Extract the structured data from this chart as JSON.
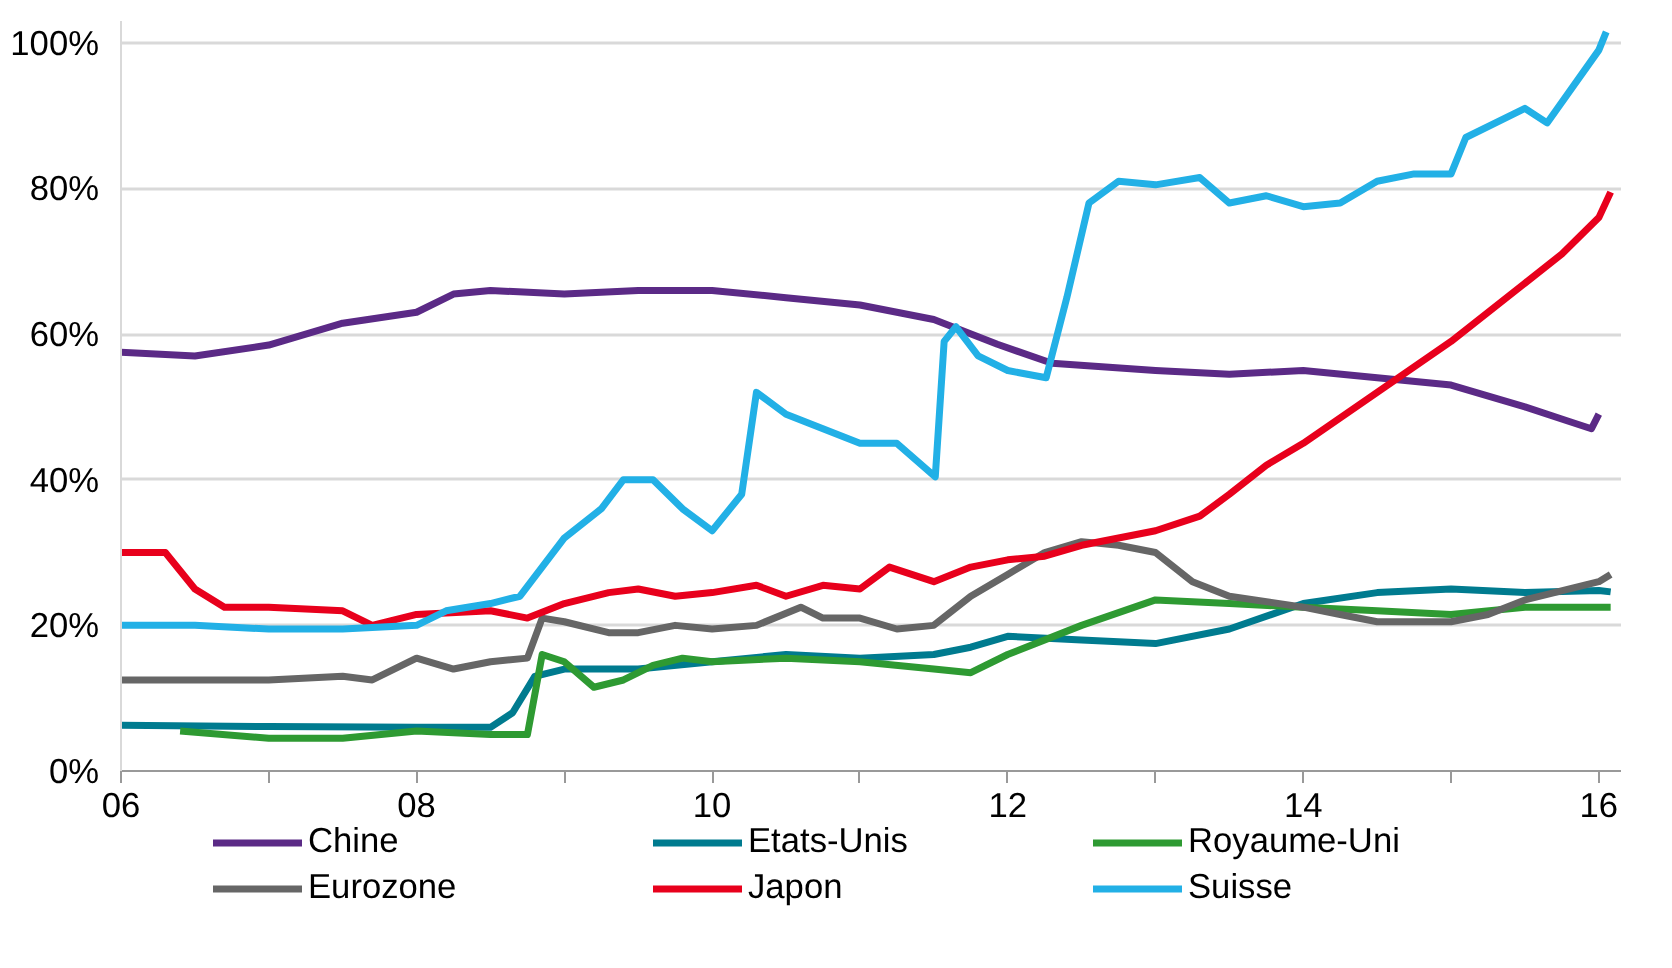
{
  "chart_data": {
    "type": "line",
    "xlim": [
      6,
      16.15
    ],
    "ylim": [
      0,
      103
    ],
    "xticks": [
      {
        "value": 6,
        "label": "06"
      },
      {
        "value": 7,
        "label": null
      },
      {
        "value": 8,
        "label": "08"
      },
      {
        "value": 9,
        "label": null
      },
      {
        "value": 10,
        "label": "10"
      },
      {
        "value": 11,
        "label": null
      },
      {
        "value": 12,
        "label": "12"
      },
      {
        "value": 13,
        "label": null
      },
      {
        "value": 14,
        "label": "14"
      },
      {
        "value": 15,
        "label": null
      },
      {
        "value": 16,
        "label": "16"
      }
    ],
    "yticks": [
      {
        "value": 0,
        "label": "0%"
      },
      {
        "value": 20,
        "label": "20%"
      },
      {
        "value": 40,
        "label": "40%"
      },
      {
        "value": 60,
        "label": "60%"
      },
      {
        "value": 80,
        "label": "80%"
      },
      {
        "value": 100,
        "label": "100%"
      }
    ],
    "grid": "y",
    "legend": "bottom",
    "marker": "none",
    "line_style": "solid",
    "series": [
      {
        "name": "Chine",
        "color": "#5b2a86",
        "x": [
          6,
          6.5,
          7,
          7.5,
          8,
          8.25,
          8.5,
          9,
          9.5,
          10,
          10.5,
          11,
          11.5,
          11.93,
          12.3,
          13,
          13.5,
          14,
          14.5,
          15,
          15.5,
          15.8,
          15.95,
          16.0
        ],
        "values": [
          57.5,
          57,
          58.5,
          61.5,
          63,
          65.5,
          66,
          65.5,
          66,
          66,
          65,
          64,
          62,
          58.6,
          56,
          55,
          54.5,
          55,
          54,
          53,
          50,
          48,
          47,
          49
        ]
      },
      {
        "name": "Etats-Unis",
        "color": "#007b8f",
        "x": [
          6,
          7,
          8,
          8.5,
          8.65,
          8.8,
          9,
          9.5,
          10,
          10.5,
          11,
          11.5,
          11.75,
          12,
          12.5,
          13,
          13.5,
          14,
          14.5,
          15,
          15.5,
          16,
          16.08
        ],
        "values": [
          6.3,
          6.1,
          6,
          6,
          8,
          13,
          14,
          14,
          15,
          16,
          15.5,
          16,
          17,
          18.5,
          18,
          17.5,
          19.5,
          23,
          24.5,
          25,
          24.5,
          24.8,
          24.6
        ]
      },
      {
        "name": "Royaume-Uni",
        "color": "#2e9a32",
        "x": [
          6.4,
          7,
          7.5,
          8,
          8.5,
          8.75,
          8.85,
          9,
          9.2,
          9.4,
          9.6,
          9.8,
          10,
          10.5,
          11,
          11.5,
          11.75,
          12,
          12.5,
          13,
          13.5,
          14,
          14.5,
          15,
          15.5,
          16,
          16.08
        ],
        "values": [
          5.5,
          4.5,
          4.5,
          5.5,
          5,
          5,
          16,
          15,
          11.5,
          12.5,
          14.5,
          15.5,
          15,
          15.5,
          15,
          14,
          13.5,
          16,
          20,
          23.5,
          23,
          22.5,
          22,
          21.5,
          22.5,
          22.5,
          22.5
        ]
      },
      {
        "name": "Eurozone",
        "color": "#666666",
        "x": [
          6,
          7,
          7.5,
          7.7,
          8,
          8.25,
          8.5,
          8.75,
          8.85,
          9,
          9.3,
          9.5,
          9.75,
          10,
          10.3,
          10.6,
          10.75,
          11,
          11.25,
          11.5,
          11.75,
          12,
          12.25,
          12.5,
          12.75,
          13,
          13.25,
          13.5,
          14,
          14.25,
          14.5,
          15,
          15.25,
          15.5,
          16,
          16.08
        ],
        "values": [
          12.5,
          12.5,
          13,
          12.5,
          15.5,
          14,
          15,
          15.5,
          21,
          20.5,
          19,
          19,
          20,
          19.5,
          20,
          22.5,
          21,
          21,
          19.5,
          20,
          24,
          27,
          30,
          31.5,
          31,
          30,
          26,
          24,
          22.5,
          21.5,
          20.5,
          20.5,
          21.5,
          23.5,
          26,
          27
        ]
      },
      {
        "name": "Japon",
        "color": "#e8001c",
        "x": [
          6,
          6.3,
          6.5,
          6.7,
          7,
          7.5,
          7.7,
          8,
          8.5,
          8.75,
          9,
          9.3,
          9.5,
          9.75,
          10,
          10.3,
          10.5,
          10.75,
          11,
          11.2,
          11.5,
          11.75,
          12,
          12.25,
          12.5,
          13,
          13.3,
          13.5,
          13.75,
          14,
          14.5,
          15,
          15.5,
          15.75,
          16,
          16.08
        ],
        "values": [
          30,
          30,
          25,
          22.5,
          22.5,
          22,
          20,
          21.5,
          22,
          21,
          23,
          24.5,
          25,
          24,
          24.5,
          25.5,
          24,
          25.5,
          25,
          28,
          26,
          28,
          29,
          29.5,
          31,
          33,
          35,
          38,
          42,
          45,
          52,
          59,
          67,
          71,
          76,
          79.5
        ]
      },
      {
        "name": "Suisse",
        "color": "#22b0e6",
        "x": [
          6,
          6.5,
          7,
          7.5,
          8,
          8.2,
          8.5,
          8.7,
          9,
          9.25,
          9.4,
          9.6,
          9.8,
          10,
          10.2,
          10.3,
          10.5,
          10.75,
          11,
          11.25,
          11.51,
          11.57,
          11.65,
          11.8,
          12,
          12.26,
          12.4,
          12.55,
          12.75,
          13,
          13.3,
          13.5,
          13.75,
          14,
          14.25,
          14.5,
          14.75,
          15,
          15.1,
          15.5,
          15.65,
          16,
          16.05
        ],
        "values": [
          20,
          20,
          19.5,
          19.5,
          20,
          22,
          23,
          24,
          32,
          36,
          40,
          40,
          36,
          33,
          38,
          52,
          49,
          47,
          45,
          45,
          40.4,
          59,
          61,
          57,
          55,
          54,
          65,
          78,
          81,
          80.5,
          81.5,
          78,
          79,
          77.5,
          78,
          81,
          82,
          82,
          87,
          91,
          89,
          99,
          101.5
        ]
      }
    ]
  }
}
